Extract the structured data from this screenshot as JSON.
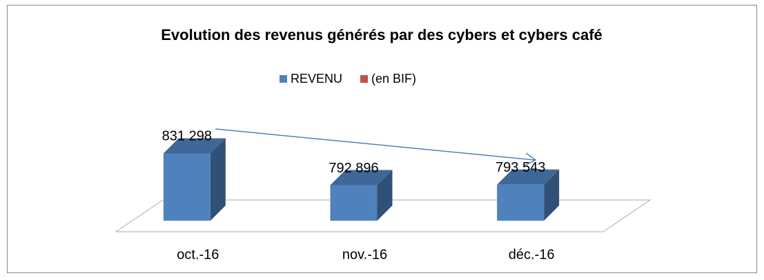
{
  "chart_data": {
    "type": "bar3d",
    "title": "Evolution des revenus générés par des cybers et cybers café",
    "categories": [
      "oct.-16",
      "nov.-16",
      "déc.-16"
    ],
    "series": [
      {
        "name": "REVENU",
        "color": "#4f81bd",
        "values": [
          831298,
          792896,
          793543
        ],
        "value_labels": [
          "831 298",
          "792 896",
          "793 543"
        ]
      },
      {
        "name": "(en BIF)",
        "color": "#c0504d",
        "values": [
          null,
          null,
          null
        ]
      }
    ],
    "ylim": [
      750000,
      850000
    ],
    "legend": "top"
  }
}
